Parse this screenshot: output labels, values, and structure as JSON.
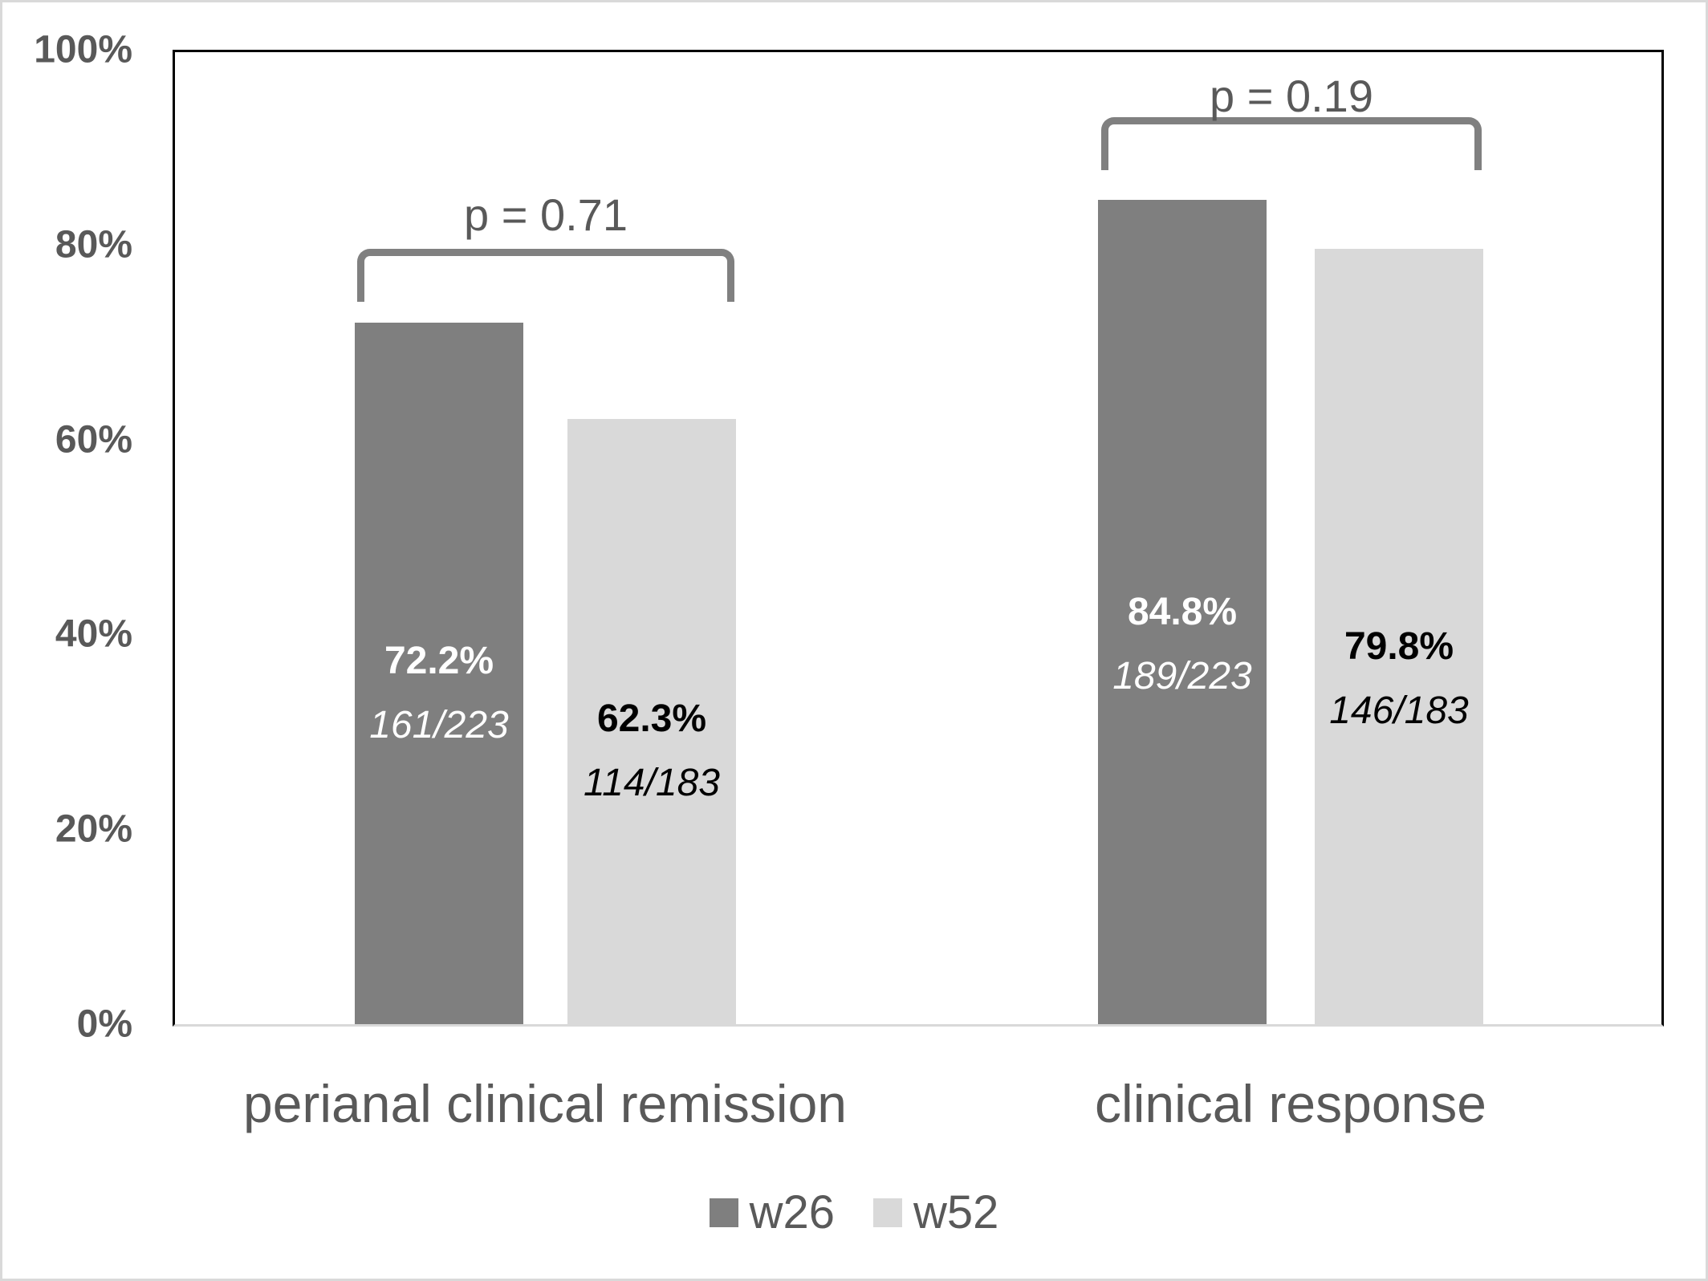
{
  "chart_data": {
    "type": "bar",
    "categories": [
      "perianal clinical remission",
      "clinical response"
    ],
    "series": [
      {
        "name": "w26",
        "color": "#7f7f7f",
        "label_color": "#ffffff",
        "values": [
          72.2,
          84.8
        ],
        "value_labels": [
          "72.2%",
          "84.8%"
        ],
        "fraction_labels": [
          "161/223",
          "189/223"
        ]
      },
      {
        "name": "w52",
        "color": "#d9d9d9",
        "label_color": "#000000",
        "values": [
          62.3,
          79.8
        ],
        "value_labels": [
          "62.3%",
          "79.8%"
        ],
        "fraction_labels": [
          "114/183",
          "146/183"
        ]
      }
    ],
    "p_values": [
      {
        "label": "p = 0.71"
      },
      {
        "label": "p = 0.19"
      }
    ],
    "y_axis": {
      "tick_labels_top_to_bottom": [
        "100%",
        "80%",
        "60%",
        "40%",
        "20%",
        "0%"
      ],
      "min": 0,
      "max": 100,
      "grid": false
    },
    "legend": {
      "position": "bottom",
      "entries": [
        "w26",
        "w52"
      ]
    }
  },
  "style_colors": {
    "axis_text": "#595959",
    "bracket": "#808080",
    "plot_border": "#000000",
    "baseline": "#d9d9d9",
    "frame": "#d9d9d9",
    "background": "#ffffff"
  }
}
